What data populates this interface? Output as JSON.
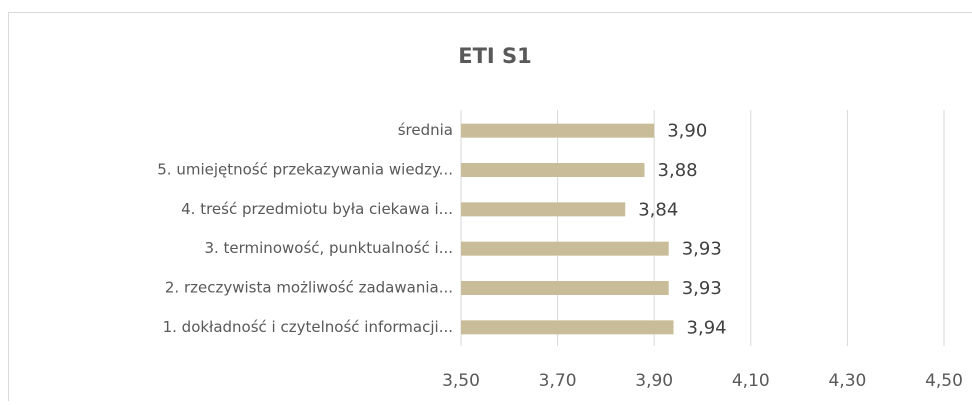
{
  "chart_data": {
    "type": "barh",
    "title": "ETI S1",
    "categories": [
      "średnia",
      "5. umiejętność przekazywania wiedzy...",
      "4. treść przedmiotu była ciekawa i...",
      "3. terminowość, punktualność i...",
      "2. rzeczywista możliwość zadawania...",
      "1. dokładność i czytelność informacji..."
    ],
    "values": [
      3.9,
      3.88,
      3.84,
      3.93,
      3.93,
      3.94
    ],
    "value_labels": [
      "3,90",
      "3,88",
      "3,84",
      "3,93",
      "3,93",
      "3,94"
    ],
    "color": "#c9bd99",
    "xlim": [
      3.5,
      4.5
    ],
    "xticks": [
      {
        "value": 3.5,
        "label": "3,50"
      },
      {
        "value": 3.7,
        "label": "3,70"
      },
      {
        "value": 3.9,
        "label": "3,90"
      },
      {
        "value": 4.1,
        "label": "4,10"
      },
      {
        "value": 4.3,
        "label": "4,30"
      },
      {
        "value": 4.5,
        "label": "4,50"
      }
    ],
    "grid": true
  }
}
